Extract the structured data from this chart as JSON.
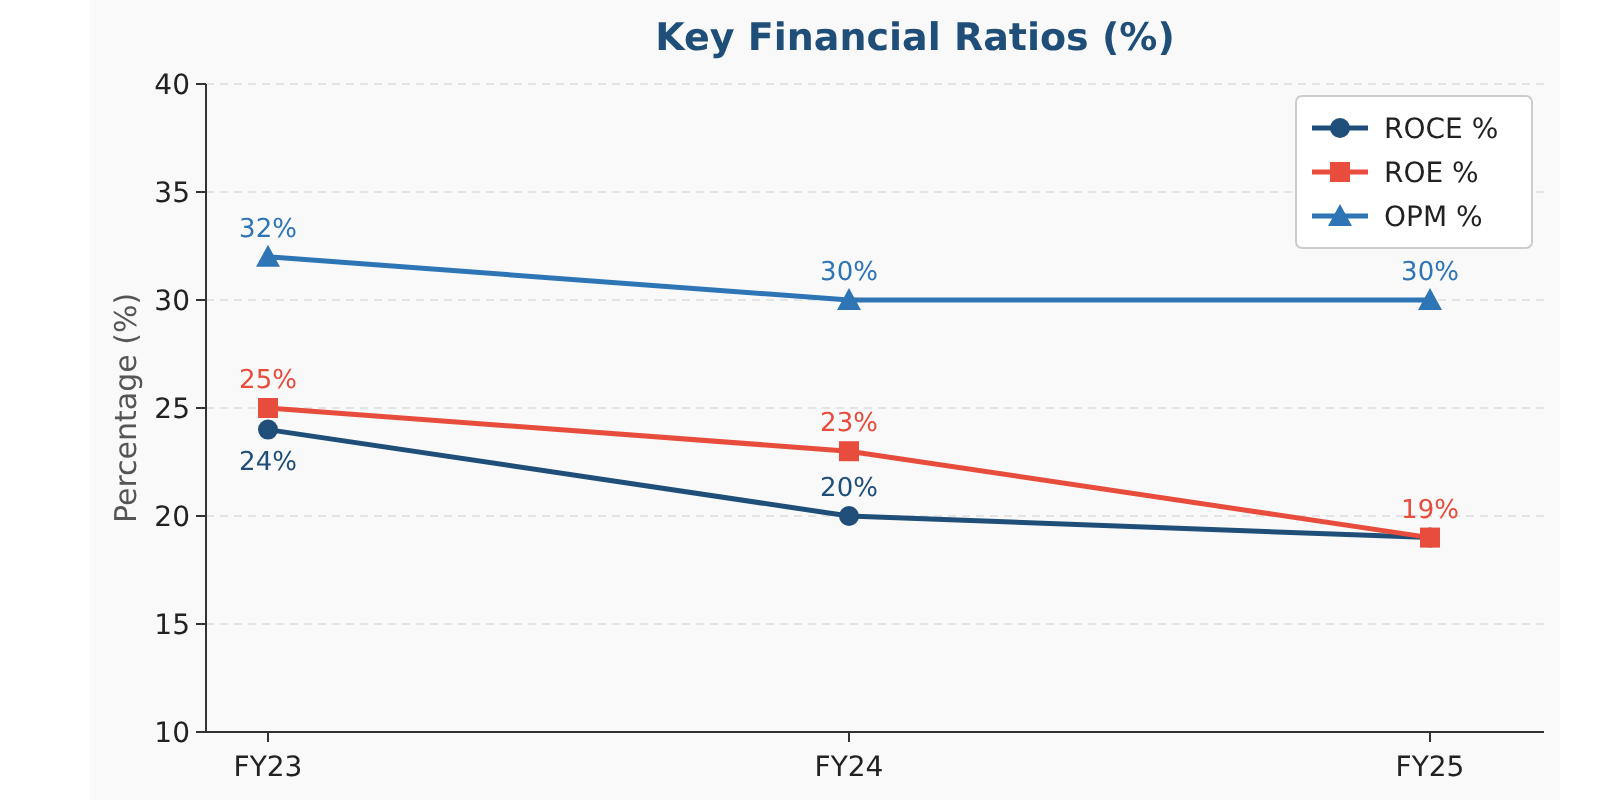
{
  "chart_data": {
    "type": "line",
    "title": "Key Financial Ratios (%)",
    "ylabel": "Percentage (%)",
    "categories": [
      "FY23",
      "FY24",
      "FY25"
    ],
    "series": [
      {
        "name": "ROCE %",
        "color": "#1f4e79",
        "values": [
          24,
          20,
          19
        ],
        "marker": "circle",
        "value_labels": [
          "24%",
          "20%",
          null
        ]
      },
      {
        "name": "ROE %",
        "color": "#e74c3c",
        "values": [
          25,
          23,
          19
        ],
        "marker": "square",
        "value_labels": [
          "25%",
          "23%",
          "19%"
        ]
      },
      {
        "name": "OPM %",
        "color": "#2e75b6",
        "values": [
          32,
          30,
          30
        ],
        "marker": "triangle",
        "value_labels": [
          "32%",
          "30%",
          "30%"
        ]
      }
    ],
    "ylim": [
      10,
      40
    ],
    "yticks": [
      10,
      15,
      20,
      25,
      30,
      35,
      40
    ],
    "grid": "y",
    "legend": "top right",
    "line_style": "solid"
  }
}
